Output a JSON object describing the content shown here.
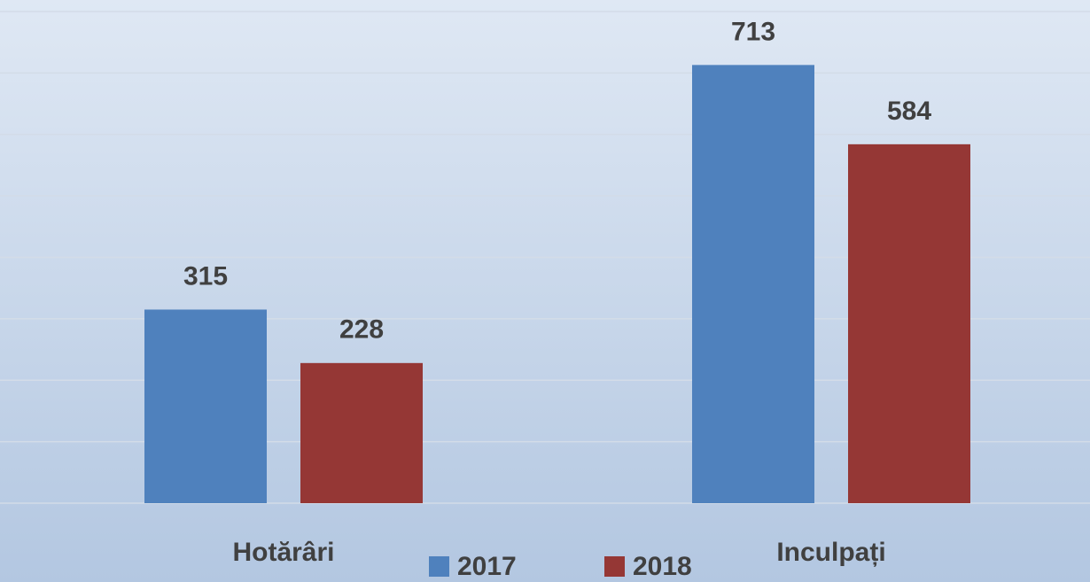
{
  "chart_data": {
    "type": "bar",
    "categories": [
      "Hotărâri",
      "Inculpați"
    ],
    "series": [
      {
        "name": "2017",
        "color": "#4f81bd",
        "values": [
          315,
          713
        ]
      },
      {
        "name": "2018",
        "color": "#953735",
        "values": [
          228,
          584
        ]
      }
    ],
    "ylim": [
      0,
      800
    ],
    "yticks": [
      0,
      100,
      200,
      300,
      400,
      500,
      600,
      700,
      800
    ],
    "grid": true,
    "legend": "bottom"
  }
}
